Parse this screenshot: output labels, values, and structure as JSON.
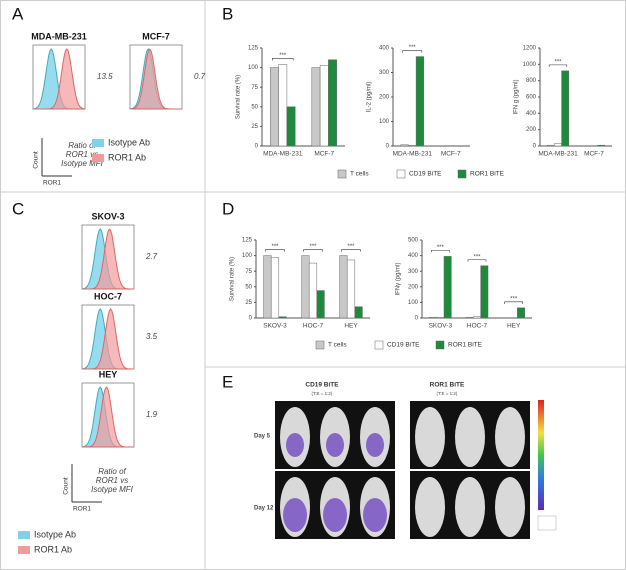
{
  "panel_labels": [
    "A",
    "B",
    "C",
    "D",
    "E"
  ],
  "histograms": {
    "A": [
      {
        "name": "MDA-MB-231",
        "ratio": 13.5
      },
      {
        "name": "MCF-7",
        "ratio": 0.7
      }
    ],
    "C": [
      {
        "name": "SKOV-3",
        "ratio": 2.7
      },
      {
        "name": "HOC-7",
        "ratio": 3.5
      },
      {
        "name": "HEY",
        "ratio": 1.9
      }
    ]
  },
  "hist_legend": {
    "y_label": "Count",
    "x_label": "ROR1",
    "ratio_lines": [
      "Ratio of",
      "ROR1 vs",
      "Isotype MFI"
    ],
    "items": [
      {
        "name": "Isotype Ab",
        "color": "#7dd3ea"
      },
      {
        "name": "ROR1 Ab",
        "color": "#f29a9a"
      }
    ]
  },
  "chart_data": [
    {
      "type": "bar",
      "y_label": "Survival rate (%)",
      "categories": [
        "MDA-MB-231",
        "MCF-7"
      ],
      "ylim": [
        0,
        125
      ],
      "yticks": [
        0,
        25,
        50,
        75,
        100,
        125
      ],
      "series": [
        {
          "name": "T cells",
          "color": "#c8c8c8",
          "values": [
            100,
            100
          ]
        },
        {
          "name": "CD19 BiTE",
          "color": "#ffffff",
          "values": [
            104,
            103
          ]
        },
        {
          "name": "ROR1 BiTE",
          "color": "#1e8a3c",
          "values": [
            50,
            110
          ]
        }
      ],
      "significance": [
        "***",
        null
      ]
    },
    {
      "type": "bar",
      "y_label": "IL-2 (pg/ml)",
      "categories": [
        "MDA-MB-231",
        "MCF-7"
      ],
      "ylim": [
        0,
        400
      ],
      "yticks": [
        0,
        100,
        200,
        300,
        400
      ],
      "series": [
        {
          "name": "T cells",
          "color": "#c8c8c8",
          "values": [
            5,
            0
          ]
        },
        {
          "name": "CD19 BiTE",
          "color": "#ffffff",
          "values": [
            3,
            0
          ]
        },
        {
          "name": "ROR1 BiTE",
          "color": "#1e8a3c",
          "values": [
            365,
            0
          ]
        }
      ],
      "significance": [
        "***",
        null
      ]
    },
    {
      "type": "bar",
      "y_label": "IFN g (pg/ml)",
      "categories": [
        "MDA-MB-231",
        "MCF-7"
      ],
      "ylim": [
        0,
        1200
      ],
      "yticks": [
        0,
        200,
        400,
        600,
        800,
        1000,
        1200
      ],
      "series": [
        {
          "name": "T cells",
          "color": "#c8c8c8",
          "values": [
            10,
            0
          ]
        },
        {
          "name": "CD19 BiTE",
          "color": "#ffffff",
          "values": [
            30,
            0
          ]
        },
        {
          "name": "ROR1 BiTE",
          "color": "#1e8a3c",
          "values": [
            920,
            10
          ]
        }
      ],
      "significance": [
        "***",
        null
      ]
    },
    {
      "type": "bar",
      "y_label": "Survival rate (%)",
      "categories": [
        "SKOV-3",
        "HOC-7",
        "HEY"
      ],
      "ylim": [
        0,
        125
      ],
      "yticks": [
        0,
        25,
        50,
        75,
        100,
        125
      ],
      "series": [
        {
          "name": "T cells",
          "color": "#c8c8c8",
          "values": [
            100,
            100,
            100
          ]
        },
        {
          "name": "CD19 BiTE",
          "color": "#ffffff",
          "values": [
            97,
            88,
            93
          ]
        },
        {
          "name": "ROR1 BiTE",
          "color": "#1e8a3c",
          "values": [
            2,
            44,
            18
          ]
        }
      ],
      "significance": [
        "***",
        "***",
        "***"
      ]
    },
    {
      "type": "bar",
      "y_label": "IFNγ (pg/ml)",
      "categories": [
        "SKOV-3",
        "HOC-7",
        "HEY"
      ],
      "ylim": [
        0,
        500
      ],
      "yticks": [
        0,
        100,
        200,
        300,
        400,
        500
      ],
      "series": [
        {
          "name": "T cells",
          "color": "#c8c8c8",
          "values": [
            5,
            5,
            0
          ]
        },
        {
          "name": "CD19 BiTE",
          "color": "#ffffff",
          "values": [
            5,
            8,
            0
          ]
        },
        {
          "name": "ROR1 BiTE",
          "color": "#1e8a3c",
          "values": [
            395,
            335,
            65
          ]
        }
      ],
      "significance": [
        "***",
        "***",
        "***"
      ]
    }
  ],
  "imaging": {
    "groups": [
      {
        "title": "CD19 BiTE",
        "subtitle": "(T:E = 1:2)"
      },
      {
        "title": "ROR1 BiTE",
        "subtitle": "(T:E = 1:2)"
      }
    ],
    "rows": [
      "Day 5",
      "Day 12"
    ]
  }
}
